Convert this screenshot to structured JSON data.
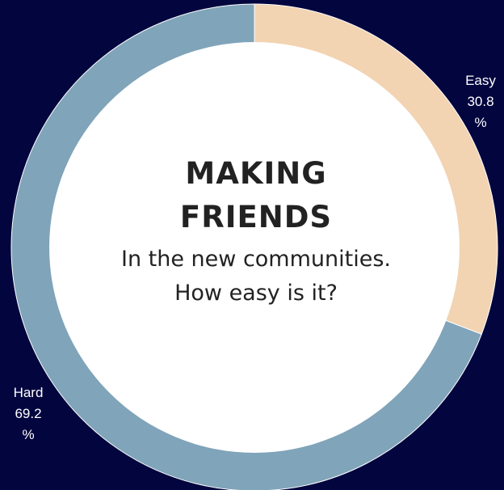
{
  "colors": {
    "background": "#03053f",
    "center": "#ffffff",
    "easy": "#f2d3b2",
    "hard": "#80a4b9"
  },
  "center": {
    "title": "MAKING FRIENDS",
    "subtitle": "In the new communities. How easy is it?"
  },
  "chart_data": {
    "type": "pie",
    "variant": "donut",
    "categories": [
      "Easy",
      "Hard"
    ],
    "values": [
      30.8,
      69.2
    ],
    "unit": "%",
    "labels": [
      {
        "name": "Easy",
        "value": "30.8",
        "unit": "%"
      },
      {
        "name": "Hard",
        "value": "69.2",
        "unit": "%"
      }
    ]
  }
}
